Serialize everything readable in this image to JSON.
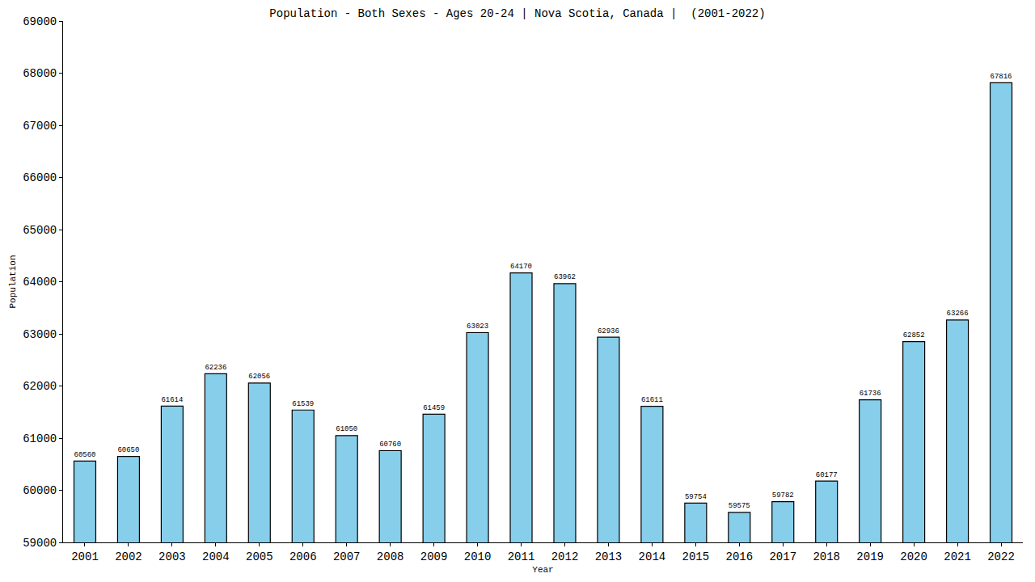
{
  "chart_data": {
    "type": "bar",
    "title": "Population - Both Sexes - Ages 20-24 | Nova Scotia, Canada |  (2001-2022)",
    "xlabel": "Year",
    "ylabel": "Population",
    "categories": [
      "2001",
      "2002",
      "2003",
      "2004",
      "2005",
      "2006",
      "2007",
      "2008",
      "2009",
      "2010",
      "2011",
      "2012",
      "2013",
      "2014",
      "2015",
      "2016",
      "2017",
      "2018",
      "2019",
      "2020",
      "2021",
      "2022"
    ],
    "values": [
      60560,
      60650,
      61614,
      62236,
      62056,
      61539,
      61050,
      60760,
      61459,
      63023,
      64170,
      63962,
      62936,
      61611,
      59754,
      59575,
      59782,
      60177,
      61736,
      62852,
      63266,
      67816
    ],
    "color": "#87ceeb",
    "ylim": [
      59000,
      69000
    ],
    "yticks": [
      59000,
      60000,
      61000,
      62000,
      63000,
      64000,
      65000,
      66000,
      67000,
      68000,
      69000
    ],
    "grid": false,
    "data_labels": true
  }
}
